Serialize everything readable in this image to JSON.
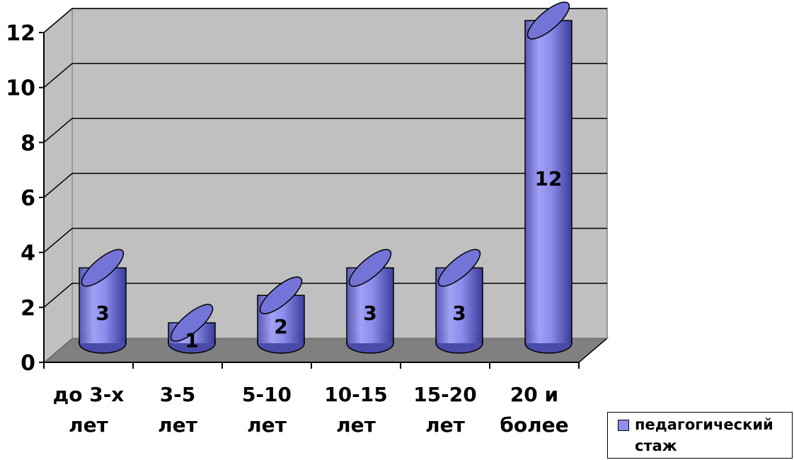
{
  "chart_data": {
    "type": "bar",
    "style": "3d-cylinder",
    "categories": [
      [
        "до 3-х",
        "лет"
      ],
      [
        "3-5",
        "лет"
      ],
      [
        "5-10",
        "лет"
      ],
      [
        "10-15",
        "лет"
      ],
      [
        "15-20",
        "лет"
      ],
      [
        "20 и",
        "более"
      ]
    ],
    "series": [
      {
        "name": "педагогический стаж",
        "values": [
          3,
          1,
          2,
          3,
          3,
          12
        ],
        "color": "#8f8fef"
      }
    ],
    "data_labels": [
      "3",
      "1",
      "2",
      "3",
      "3",
      "12"
    ],
    "yticks": [
      "0",
      "2",
      "4",
      "6",
      "8",
      "10",
      "12"
    ],
    "ylim": [
      0,
      12
    ],
    "grid": true,
    "legend_position": "bottom-right",
    "colors": {
      "wall": "#c0c0c0",
      "floor": "#808080",
      "bar": "#8f8fef",
      "bar_dark": "#3a3a9c"
    }
  }
}
